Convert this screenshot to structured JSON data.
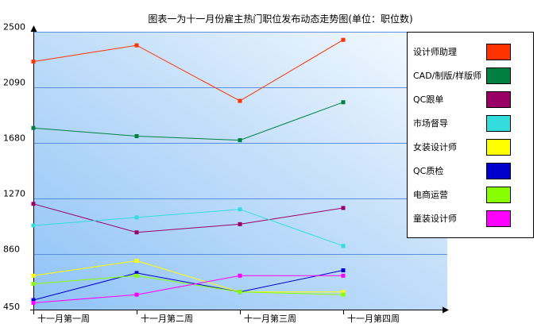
{
  "chart_data": {
    "type": "line",
    "title": "图表一为十一月份雇主热门职位发布动态走势图(单位：职位数)",
    "categories": [
      "十一月第一周",
      "十一月第二周",
      "十一月第三周",
      "十一月第四周"
    ],
    "ylim": [
      450,
      2500
    ],
    "yticks": [
      450,
      860,
      1270,
      1680,
      2090,
      2500
    ],
    "grid": true,
    "legend_position": "right",
    "series": [
      {
        "name": "设计师助理",
        "color": "#ff3300",
        "values": [
          2280,
          2400,
          1990,
          2440
        ]
      },
      {
        "name": "CAD/制版/样版师",
        "color": "#008040",
        "values": [
          1790,
          1730,
          1700,
          1980
        ]
      },
      {
        "name": "QC跟单",
        "color": "#990066",
        "values": [
          1230,
          1020,
          1080,
          1200
        ]
      },
      {
        "name": "市场督导",
        "color": "#33dddd",
        "values": [
          1070,
          1130,
          1190,
          920
        ]
      },
      {
        "name": "女装设计师",
        "color": "#ffff00",
        "values": [
          700,
          810,
          580,
          580
        ]
      },
      {
        "name": "QC质检",
        "color": "#0000cc",
        "values": [
          520,
          720,
          580,
          740
        ]
      },
      {
        "name": "电商运营",
        "color": "#88ff00",
        "values": [
          640,
          700,
          580,
          560
        ]
      },
      {
        "name": "童装设计师",
        "color": "#ff00ff",
        "values": [
          500,
          560,
          700,
          700
        ]
      }
    ]
  }
}
